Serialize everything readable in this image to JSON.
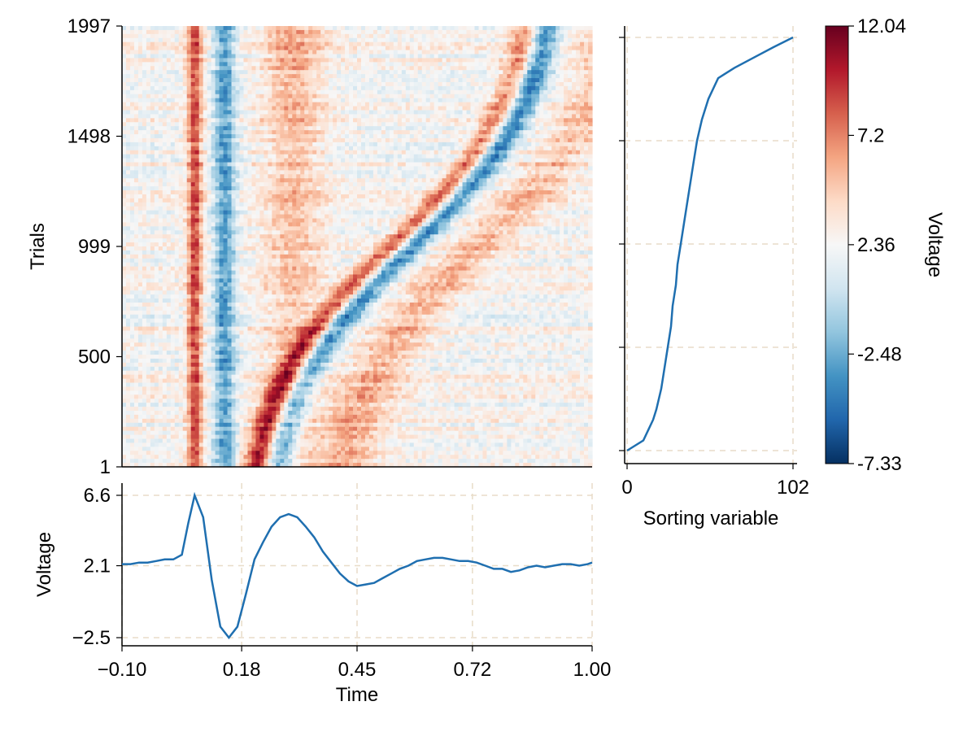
{
  "chart_data": [
    {
      "id": "erp-image",
      "type": "heatmap",
      "xlabel": "",
      "ylabel": "Trials",
      "xlim": [
        -0.1,
        1.0
      ],
      "ylim": [
        1,
        1997
      ],
      "yticks": [
        1,
        500,
        999,
        1498,
        1997
      ],
      "ytick_labels": [
        "1",
        "500",
        "999",
        "1498",
        "1997"
      ],
      "description_of_pattern": {
        "fixed_positive_band_time": 0.07,
        "fixed_negative_band_time": 0.14,
        "sorted_wave_onset_bottom": 0.24,
        "sorted_wave_onset_top": 0.87
      }
    },
    {
      "id": "sorting-panel",
      "type": "line",
      "xlabel": "Sorting variable",
      "ylabel": "",
      "xlim": [
        0,
        102
      ],
      "ylim": [
        1,
        1997
      ],
      "xticks": [
        0,
        102
      ],
      "xtick_labels": [
        "0",
        "102"
      ],
      "y_trials": [
        1,
        50,
        100,
        150,
        200,
        300,
        400,
        500,
        600,
        700,
        800,
        900,
        999,
        1100,
        1200,
        1300,
        1400,
        1498,
        1600,
        1700,
        1800,
        1850,
        1900,
        1950,
        1997
      ],
      "x_values": [
        0,
        10,
        13,
        16,
        18,
        21,
        23,
        25,
        27,
        28,
        30,
        31,
        33,
        35,
        37,
        39,
        41,
        43,
        46,
        50,
        56,
        66,
        78,
        90,
        102
      ]
    },
    {
      "id": "colorbar",
      "type": "colorbar",
      "label": "Voltage",
      "limits": [
        -7.33,
        12.04
      ],
      "ticks": [
        -7.33,
        -2.48,
        2.36,
        7.2,
        12.04
      ],
      "tick_labels": [
        "-7.33",
        "-2.48",
        "2.36",
        "7.2",
        "12.04"
      ],
      "colormap": [
        "#053061",
        "#2166ac",
        "#4393c3",
        "#92c5de",
        "#d1e5f0",
        "#f7f7f7",
        "#fddbc7",
        "#f4a582",
        "#d6604d",
        "#b2182b",
        "#67001f"
      ]
    },
    {
      "id": "erp-average",
      "type": "line",
      "xlabel": "Time",
      "ylabel": "Voltage",
      "xlim": [
        -0.1,
        1.0
      ],
      "ylim": [
        -2.5,
        6.6
      ],
      "xticks": [
        -0.1,
        0.18,
        0.45,
        0.72,
        1.0
      ],
      "xtick_labels": [
        "−0.10",
        "0.18",
        "0.45",
        "0.72",
        "1.00"
      ],
      "yticks": [
        -2.5,
        2.1,
        6.6
      ],
      "ytick_labels": [
        "−2.5",
        "2.1",
        "6.6"
      ],
      "x": [
        -0.1,
        -0.08,
        -0.06,
        -0.04,
        -0.02,
        0.0,
        0.02,
        0.04,
        0.055,
        0.07,
        0.09,
        0.11,
        0.13,
        0.15,
        0.17,
        0.19,
        0.21,
        0.23,
        0.25,
        0.27,
        0.29,
        0.31,
        0.33,
        0.35,
        0.37,
        0.39,
        0.41,
        0.43,
        0.45,
        0.47,
        0.49,
        0.51,
        0.53,
        0.55,
        0.57,
        0.59,
        0.61,
        0.63,
        0.65,
        0.67,
        0.69,
        0.71,
        0.73,
        0.75,
        0.77,
        0.79,
        0.81,
        0.83,
        0.85,
        0.87,
        0.89,
        0.91,
        0.93,
        0.95,
        0.97,
        0.99,
        1.0
      ],
      "y": [
        2.2,
        2.2,
        2.3,
        2.3,
        2.4,
        2.5,
        2.5,
        2.8,
        4.8,
        6.6,
        5.2,
        1.2,
        -1.8,
        -2.5,
        -1.8,
        0.3,
        2.5,
        3.6,
        4.6,
        5.2,
        5.4,
        5.2,
        4.6,
        3.9,
        3.0,
        2.3,
        1.6,
        1.1,
        0.8,
        0.9,
        1.0,
        1.3,
        1.6,
        1.9,
        2.1,
        2.4,
        2.5,
        2.6,
        2.6,
        2.5,
        2.4,
        2.4,
        2.3,
        2.1,
        1.9,
        1.9,
        1.7,
        1.8,
        2.0,
        2.1,
        2.0,
        2.1,
        2.2,
        2.2,
        2.1,
        2.2,
        2.3
      ]
    }
  ]
}
